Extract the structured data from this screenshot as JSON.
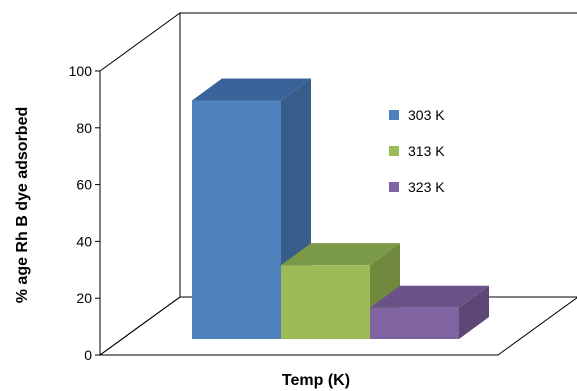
{
  "chart_data": {
    "type": "bar",
    "categories": [
      "303 K",
      "313 K",
      "323 K"
    ],
    "values": [
      84,
      26,
      11
    ],
    "colors": {
      "303 K": {
        "front": "#4F81BD",
        "side": "#385D8A",
        "top": "#3A639A"
      },
      "313 K": {
        "front": "#9BBB59",
        "side": "#71893F",
        "top": "#7A9A47"
      },
      "323 K": {
        "front": "#8064A2",
        "side": "#5C4776",
        "top": "#6A5288"
      }
    },
    "xlabel": "Temp (K)",
    "ylabel": "% age Rh B dye adsorbed",
    "ylim": [
      0,
      100
    ],
    "yticks": [
      "0",
      "20",
      "40",
      "60",
      "80",
      "100"
    ],
    "legend_position": "right",
    "projection": "3d"
  }
}
